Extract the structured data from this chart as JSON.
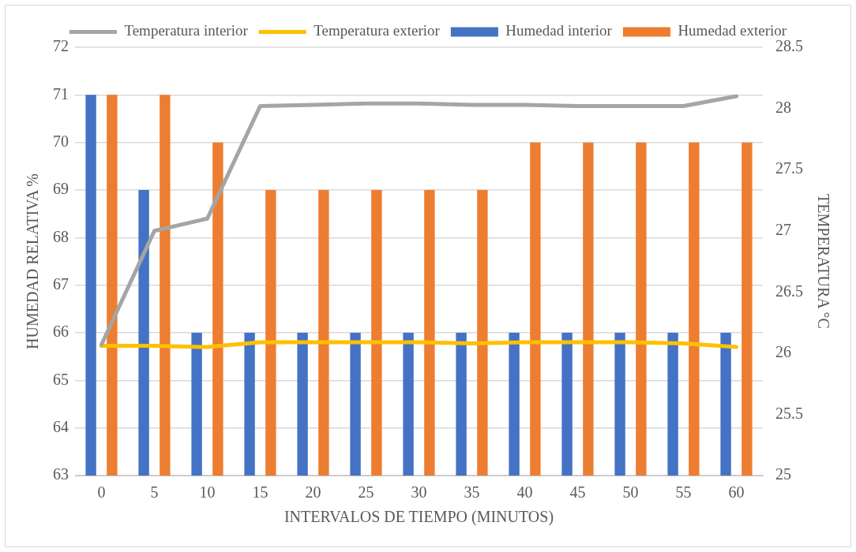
{
  "chart_data": {
    "type": "bar",
    "xlabel": "INTERVALOS DE TIEMPO (MINUTOS)",
    "ylabel": "HUMEDAD RELATIVA %",
    "y2label": "TEMPERATURA °C",
    "categories": [
      "0",
      "5",
      "10",
      "15",
      "20",
      "25",
      "30",
      "35",
      "40",
      "45",
      "50",
      "55",
      "60"
    ],
    "series": [
      {
        "name": "Humedad interior",
        "color": "#4472c4",
        "values": [
          71,
          69,
          66,
          66,
          66,
          66,
          66,
          66,
          66,
          66,
          66,
          66,
          66
        ]
      },
      {
        "name": "Humedad exterior",
        "color": "#ed7d31",
        "values": [
          71,
          71,
          70,
          69,
          69,
          69,
          69,
          69,
          70,
          70,
          70,
          70,
          70
        ]
      },
      {
        "name": "Temperatura interior",
        "type": "line",
        "axis": "y2",
        "color": "#a5a5a5",
        "values": [
          26.07,
          27.0,
          27.1,
          28.02,
          28.03,
          28.04,
          28.04,
          28.03,
          28.03,
          28.02,
          28.02,
          28.02,
          28.1
        ]
      },
      {
        "name": "Temperatura exterior",
        "type": "line",
        "axis": "y2",
        "color": "#ffc000",
        "values": [
          26.06,
          26.06,
          26.05,
          26.09,
          26.09,
          26.09,
          26.09,
          26.08,
          26.09,
          26.09,
          26.09,
          26.08,
          26.05
        ]
      }
    ],
    "ylim": [
      63,
      72
    ],
    "yticks": [
      63,
      64,
      65,
      66,
      67,
      68,
      69,
      70,
      71,
      72
    ],
    "y2lim": [
      25,
      28.5
    ],
    "y2ticks": [
      25,
      25.5,
      26,
      26.5,
      27,
      27.5,
      28,
      28.5
    ],
    "grid": "y",
    "legend": "top",
    "marker": "none"
  }
}
